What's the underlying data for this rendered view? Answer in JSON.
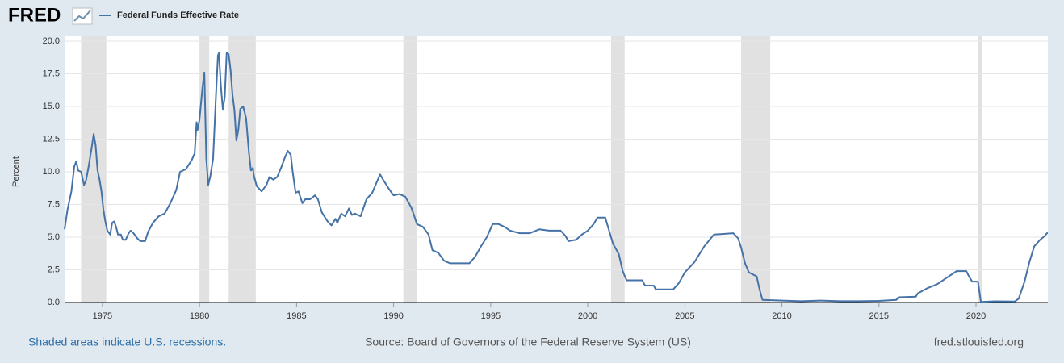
{
  "logo": "FRED",
  "footer": {
    "note": "Shaded areas indicate U.S. recessions.",
    "source": "Source: Board of Governors of the Federal Reserve System (US)",
    "site": "fred.stlouisfed.org"
  },
  "chart_data": {
    "type": "line",
    "ylabel": "Percent",
    "xlim": [
      1973.05,
      2023.7
    ],
    "xticks": [
      1975,
      1980,
      1985,
      1990,
      1995,
      2000,
      2005,
      2010,
      2015,
      2020
    ],
    "ylim": [
      0,
      20
    ],
    "yticks": [
      {
        "value": 0,
        "label": "0.0"
      },
      2.5,
      {
        "value": 5,
        "label": "5.0"
      },
      7.5,
      {
        "value": 10,
        "label": "10.0"
      },
      12.5,
      {
        "value": 15,
        "label": "15.0"
      },
      17.5,
      {
        "value": 20,
        "label": "20.0"
      }
    ],
    "grid": true,
    "recessions": [
      [
        1973.9,
        1975.2
      ],
      [
        1980.0,
        1980.5
      ],
      [
        1981.5,
        1982.9
      ],
      [
        1990.5,
        1991.2
      ],
      [
        2001.2,
        2001.9
      ],
      [
        2007.9,
        2009.4
      ],
      [
        2020.1,
        2020.3
      ]
    ],
    "x": [
      1973.05,
      1973.2,
      1973.4,
      1973.55,
      1973.65,
      1973.75,
      1973.9,
      1974.05,
      1974.15,
      1974.3,
      1974.45,
      1974.55,
      1974.65,
      1974.75,
      1974.85,
      1974.95,
      1975.05,
      1975.15,
      1975.25,
      1975.4,
      1975.5,
      1975.6,
      1975.7,
      1975.8,
      1975.95,
      1976.05,
      1976.2,
      1976.35,
      1976.45,
      1976.6,
      1976.8,
      1976.95,
      1977.2,
      1977.35,
      1977.6,
      1977.9,
      1978.2,
      1978.5,
      1978.8,
      1979.0,
      1979.3,
      1979.6,
      1979.75,
      1979.85,
      1979.9,
      1980.0,
      1980.15,
      1980.25,
      1980.35,
      1980.45,
      1980.55,
      1980.7,
      1980.85,
      1980.95,
      1981.0,
      1981.1,
      1981.2,
      1981.3,
      1981.4,
      1981.5,
      1981.6,
      1981.7,
      1981.8,
      1981.9,
      1982.0,
      1982.1,
      1982.25,
      1982.4,
      1982.55,
      1982.65,
      1982.75,
      1982.8,
      1982.95,
      1983.2,
      1983.45,
      1983.6,
      1983.8,
      1984.0,
      1984.2,
      1984.4,
      1984.55,
      1984.7,
      1984.8,
      1984.95,
      1985.1,
      1985.3,
      1985.45,
      1985.7,
      1985.95,
      1986.1,
      1986.3,
      1986.6,
      1986.8,
      1987.0,
      1987.1,
      1987.3,
      1987.5,
      1987.7,
      1987.85,
      1988.0,
      1988.3,
      1988.6,
      1988.9,
      1989.1,
      1989.3,
      1989.5,
      1989.8,
      1990.0,
      1990.3,
      1990.6,
      1990.9,
      1991.0,
      1991.2,
      1991.5,
      1991.8,
      1992.0,
      1992.3,
      1992.6,
      1992.9,
      1993.3,
      1993.9,
      1994.2,
      1994.5,
      1994.8,
      1995.1,
      1995.4,
      1995.7,
      1996.0,
      1996.5,
      1997.0,
      1997.5,
      1998.0,
      1998.6,
      1998.85,
      1999.0,
      1999.4,
      1999.7,
      2000.0,
      2000.3,
      2000.5,
      2000.9,
      2001.1,
      2001.3,
      2001.6,
      2001.8,
      2002.0,
      2002.8,
      2002.95,
      2003.4,
      2003.5,
      2004.4,
      2004.7,
      2005.0,
      2005.5,
      2006.0,
      2006.5,
      2007.5,
      2007.75,
      2007.9,
      2008.1,
      2008.3,
      2008.7,
      2008.85,
      2009.0,
      2010.0,
      2011.0,
      2012.0,
      2013.0,
      2014.0,
      2015.0,
      2015.9,
      2016.0,
      2016.9,
      2017.0,
      2017.5,
      2018.0,
      2018.5,
      2019.0,
      2019.5,
      2019.6,
      2019.8,
      2020.1,
      2020.25,
      2021.0,
      2022.0,
      2022.2,
      2022.5,
      2022.75,
      2023.0,
      2023.3,
      2023.55,
      2023.65,
      2023.7
    ],
    "series": [
      {
        "name": "Federal Funds Effective Rate",
        "color": "#4572a7",
        "values": [
          5.6,
          7.1,
          8.5,
          10.4,
          10.8,
          10.1,
          10.0,
          9.0,
          9.3,
          10.5,
          11.9,
          12.9,
          12.0,
          10.1,
          9.4,
          8.5,
          7.1,
          6.2,
          5.5,
          5.2,
          6.1,
          6.2,
          5.8,
          5.2,
          5.2,
          4.8,
          4.8,
          5.3,
          5.5,
          5.3,
          4.9,
          4.7,
          4.7,
          5.4,
          6.1,
          6.6,
          6.8,
          7.6,
          8.6,
          10.0,
          10.2,
          10.9,
          11.4,
          13.8,
          13.2,
          14.0,
          16.4,
          17.6,
          11.0,
          9.0,
          9.6,
          11.0,
          15.9,
          18.9,
          19.1,
          16.6,
          14.8,
          15.7,
          19.1,
          19.0,
          17.8,
          15.9,
          14.7,
          12.4,
          13.2,
          14.8,
          15.0,
          14.1,
          11.4,
          10.1,
          10.3,
          9.7,
          8.9,
          8.5,
          9.0,
          9.6,
          9.4,
          9.6,
          10.3,
          11.1,
          11.6,
          11.3,
          10.0,
          8.4,
          8.5,
          7.6,
          7.9,
          7.9,
          8.2,
          7.9,
          6.9,
          6.2,
          5.9,
          6.4,
          6.1,
          6.8,
          6.6,
          7.2,
          6.7,
          6.8,
          6.6,
          7.9,
          8.4,
          9.1,
          9.8,
          9.3,
          8.6,
          8.2,
          8.3,
          8.1,
          7.3,
          6.9,
          6.0,
          5.8,
          5.2,
          4.0,
          3.8,
          3.2,
          3.0,
          3.0,
          3.0,
          3.5,
          4.3,
          5.0,
          6.0,
          6.0,
          5.8,
          5.5,
          5.3,
          5.3,
          5.6,
          5.5,
          5.5,
          5.1,
          4.7,
          4.8,
          5.2,
          5.5,
          6.0,
          6.5,
          6.5,
          5.5,
          4.5,
          3.7,
          2.4,
          1.7,
          1.7,
          1.3,
          1.3,
          1.0,
          1.0,
          1.5,
          2.3,
          3.1,
          4.3,
          5.2,
          5.3,
          4.9,
          4.2,
          3.0,
          2.3,
          2.0,
          1.0,
          0.2,
          0.15,
          0.1,
          0.15,
          0.1,
          0.1,
          0.12,
          0.2,
          0.4,
          0.45,
          0.7,
          1.1,
          1.4,
          1.9,
          2.4,
          2.4,
          2.1,
          1.6,
          1.6,
          0.05,
          0.09,
          0.08,
          0.3,
          1.6,
          3.1,
          4.3,
          4.8,
          5.1,
          5.3,
          5.3
        ]
      }
    ]
  }
}
